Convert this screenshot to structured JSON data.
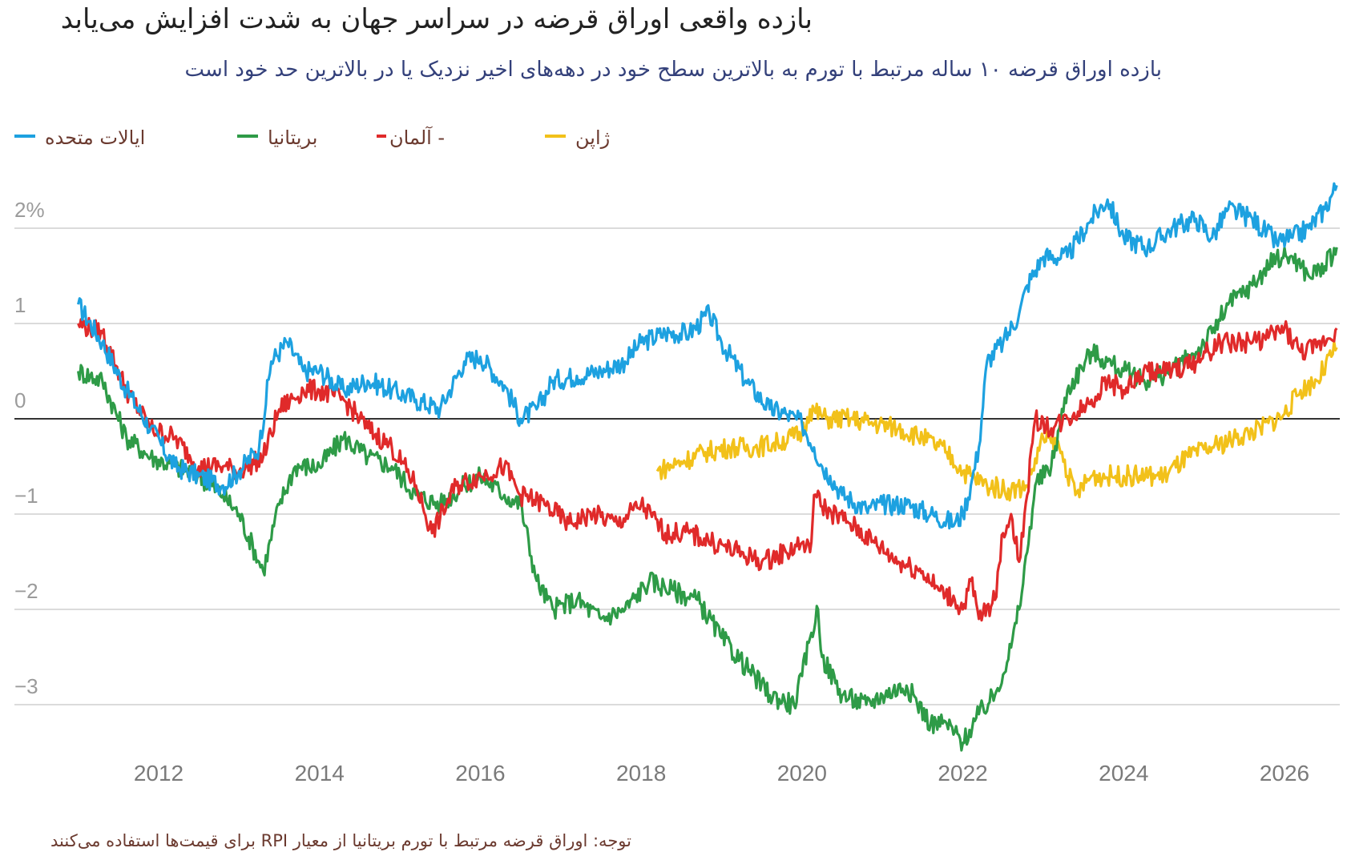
{
  "title": "بازده واقعی اوراق قرضه در سراسر جهان به شدت افزایش می‌یابد",
  "subtitle": "بازده اوراق قرضه ۱۰ ساله مرتبط با تورم به بالاترین سطح خود در دهه‌های اخیر نزدیک یا در بالاترین حد خود است",
  "legend": [
    {
      "label": "ایالات متحده",
      "color": "#1da1e0"
    },
    {
      "label": "بریتانیا",
      "color": "#2e9b47"
    },
    {
      "label": "- آلمان",
      "color": "#e02a2a"
    },
    {
      "label": "ژاپن",
      "color": "#f2c11a"
    }
  ],
  "note": "توجه: اوراق قرضه مرتبط با تورم بریتانیا از معیار RPI برای قیمت‌ها استفاده می‌کنند",
  "chart_data": {
    "type": "line",
    "ylim": [
      -3.5,
      2.5
    ],
    "xlim": [
      2010.6,
      2026.8
    ],
    "y_ticks": [
      {
        "value": 2,
        "label": "2%"
      },
      {
        "value": 1,
        "label": "1"
      },
      {
        "value": 0,
        "label": "0"
      },
      {
        "value": -1,
        "label": "−1"
      },
      {
        "value": -2,
        "label": "−2"
      },
      {
        "value": -3,
        "label": "−3"
      }
    ],
    "x_ticks": [
      {
        "value": 2012,
        "label": "2012"
      },
      {
        "value": 2014,
        "label": "2014"
      },
      {
        "value": 2016,
        "label": "2016"
      },
      {
        "value": 2018,
        "label": "2018"
      },
      {
        "value": 2020,
        "label": "2020"
      },
      {
        "value": 2022,
        "label": "2022"
      },
      {
        "value": 2024,
        "label": "2024"
      },
      {
        "value": 2026,
        "label": "2026"
      }
    ],
    "series": [
      {
        "name": "ایالات متحده",
        "color": "#1da1e0",
        "x": [
          2011.0,
          2011.3,
          2011.6,
          2011.9,
          2012.2,
          2012.5,
          2012.8,
          2013.0,
          2013.25,
          2013.4,
          2013.6,
          2013.8,
          2014.0,
          2014.3,
          2014.6,
          2014.9,
          2015.2,
          2015.5,
          2015.8,
          2016.0,
          2016.3,
          2016.5,
          2016.7,
          2016.9,
          2017.2,
          2017.5,
          2017.8,
          2018.0,
          2018.3,
          2018.6,
          2018.85,
          2019.0,
          2019.3,
          2019.6,
          2019.8,
          2020.0,
          2020.15,
          2020.25,
          2020.35,
          2020.5,
          2020.8,
          2021.0,
          2021.3,
          2021.6,
          2021.9,
          2022.0,
          2022.1,
          2022.2,
          2022.3,
          2022.5,
          2022.7,
          2022.8,
          2023.0,
          2023.3,
          2023.6,
          2023.8,
          2024.0,
          2024.3,
          2024.6,
          2024.9,
          2025.1,
          2025.3,
          2025.6,
          2025.9,
          2026.1,
          2026.3,
          2026.5,
          2026.65
        ],
        "values": [
          1.2,
          0.8,
          0.3,
          -0.1,
          -0.5,
          -0.6,
          -0.7,
          -0.55,
          -0.3,
          0.6,
          0.8,
          0.5,
          0.5,
          0.3,
          0.4,
          0.3,
          0.2,
          0.1,
          0.6,
          0.65,
          0.35,
          0.0,
          0.1,
          0.4,
          0.45,
          0.5,
          0.6,
          0.8,
          0.9,
          0.9,
          1.1,
          0.8,
          0.4,
          0.1,
          0.05,
          -0.05,
          -0.3,
          -0.5,
          -0.6,
          -0.8,
          -0.95,
          -0.9,
          -0.9,
          -1.0,
          -1.1,
          -1.0,
          -0.7,
          -0.3,
          0.6,
          0.8,
          1.1,
          1.4,
          1.7,
          1.7,
          2.1,
          2.3,
          1.9,
          1.8,
          2.0,
          2.1,
          1.9,
          2.2,
          2.1,
          1.85,
          1.9,
          2.0,
          2.2,
          2.45
        ]
      },
      {
        "name": "بریتانیا",
        "color": "#2e9b47",
        "x": [
          2011.0,
          2011.3,
          2011.6,
          2011.9,
          2012.2,
          2012.5,
          2012.8,
          2013.0,
          2013.3,
          2013.5,
          2013.7,
          2014.0,
          2014.3,
          2014.6,
          2014.9,
          2015.2,
          2015.5,
          2015.8,
          2016.0,
          2016.3,
          2016.5,
          2016.7,
          2016.9,
          2017.2,
          2017.5,
          2017.8,
          2018.1,
          2018.4,
          2018.7,
          2019.0,
          2019.3,
          2019.6,
          2019.9,
          2020.0,
          2020.1,
          2020.2,
          2020.25,
          2020.5,
          2020.8,
          2021.0,
          2021.3,
          2021.6,
          2021.8,
          2022.0,
          2022.2,
          2022.4,
          2022.6,
          2022.7,
          2022.8,
          2022.9,
          2023.1,
          2023.3,
          2023.6,
          2023.8,
          2024.0,
          2024.3,
          2024.6,
          2024.9,
          2025.1,
          2025.3,
          2025.6,
          2025.9,
          2026.1,
          2026.3,
          2026.5,
          2026.65
        ],
        "values": [
          0.5,
          0.4,
          -0.2,
          -0.4,
          -0.5,
          -0.6,
          -0.8,
          -1.0,
          -1.6,
          -0.9,
          -0.5,
          -0.5,
          -0.2,
          -0.4,
          -0.5,
          -0.8,
          -0.9,
          -0.7,
          -0.6,
          -0.8,
          -0.9,
          -1.7,
          -2.0,
          -1.9,
          -2.1,
          -2.0,
          -1.7,
          -1.8,
          -1.9,
          -2.3,
          -2.6,
          -2.9,
          -3.0,
          -2.7,
          -2.3,
          -2.0,
          -2.5,
          -2.9,
          -3.0,
          -2.9,
          -2.8,
          -3.2,
          -3.2,
          -3.4,
          -3.1,
          -2.9,
          -2.4,
          -2.0,
          -1.4,
          -0.7,
          -0.5,
          0.3,
          0.7,
          0.6,
          0.5,
          0.4,
          0.5,
          0.7,
          0.9,
          1.2,
          1.4,
          1.7,
          1.7,
          1.5,
          1.6,
          1.8
        ]
      },
      {
        "name": "- آلمان",
        "color": "#e02a2a",
        "x": [
          2011.0,
          2011.3,
          2011.6,
          2011.9,
          2012.2,
          2012.5,
          2012.8,
          2013.0,
          2013.3,
          2013.5,
          2013.8,
          2014.0,
          2014.3,
          2014.6,
          2014.9,
          2015.2,
          2015.4,
          2015.7,
          2016.0,
          2016.3,
          2016.5,
          2016.8,
          2017.1,
          2017.4,
          2017.7,
          2018.0,
          2018.3,
          2018.6,
          2018.9,
          2019.2,
          2019.5,
          2019.8,
          2020.0,
          2020.1,
          2020.15,
          2020.3,
          2020.6,
          2020.9,
          2021.2,
          2021.5,
          2021.7,
          2021.9,
          2022.0,
          2022.1,
          2022.2,
          2022.4,
          2022.5,
          2022.6,
          2022.7,
          2022.8,
          2022.9,
          2023.1,
          2023.3,
          2023.6,
          2023.8,
          2024.0,
          2024.3,
          2024.6,
          2024.9,
          2025.2,
          2025.5,
          2025.8,
          2026.0,
          2026.2,
          2026.4,
          2026.65
        ],
        "values": [
          1.0,
          0.9,
          0.3,
          -0.1,
          -0.2,
          -0.5,
          -0.5,
          -0.55,
          -0.4,
          0.1,
          0.3,
          0.3,
          0.2,
          -0.1,
          -0.3,
          -0.7,
          -1.2,
          -0.7,
          -0.6,
          -0.5,
          -0.8,
          -0.9,
          -1.1,
          -1.0,
          -1.1,
          -0.9,
          -1.2,
          -1.2,
          -1.3,
          -1.4,
          -1.5,
          -1.4,
          -1.3,
          -1.4,
          -0.8,
          -0.95,
          -1.1,
          -1.3,
          -1.5,
          -1.6,
          -1.8,
          -1.9,
          -2.0,
          -1.7,
          -2.1,
          -1.9,
          -1.2,
          -1.0,
          -1.5,
          -0.8,
          0.0,
          -0.1,
          0.0,
          0.2,
          0.4,
          0.3,
          0.5,
          0.5,
          0.6,
          0.8,
          0.8,
          0.85,
          0.95,
          0.7,
          0.75,
          0.95
        ]
      },
      {
        "name": "ژاپن",
        "color": "#f2c11a",
        "x": [
          2018.2,
          2018.5,
          2018.8,
          2019.1,
          2019.4,
          2019.7,
          2020.0,
          2020.1,
          2020.3,
          2020.6,
          2020.9,
          2021.2,
          2021.5,
          2021.8,
          2022.0,
          2022.3,
          2022.6,
          2022.8,
          2023.0,
          2023.2,
          2023.4,
          2023.6,
          2023.9,
          2024.2,
          2024.5,
          2024.8,
          2025.1,
          2025.4,
          2025.7,
          2026.0,
          2026.2,
          2026.4,
          2026.65
        ],
        "values": [
          -0.55,
          -0.45,
          -0.35,
          -0.3,
          -0.3,
          -0.25,
          -0.15,
          0.1,
          0.0,
          0.0,
          -0.05,
          -0.1,
          -0.2,
          -0.35,
          -0.55,
          -0.7,
          -0.75,
          -0.7,
          -0.2,
          -0.3,
          -0.8,
          -0.6,
          -0.6,
          -0.6,
          -0.6,
          -0.4,
          -0.3,
          -0.2,
          -0.1,
          0.05,
          0.3,
          0.4,
          0.75
        ]
      }
    ]
  }
}
